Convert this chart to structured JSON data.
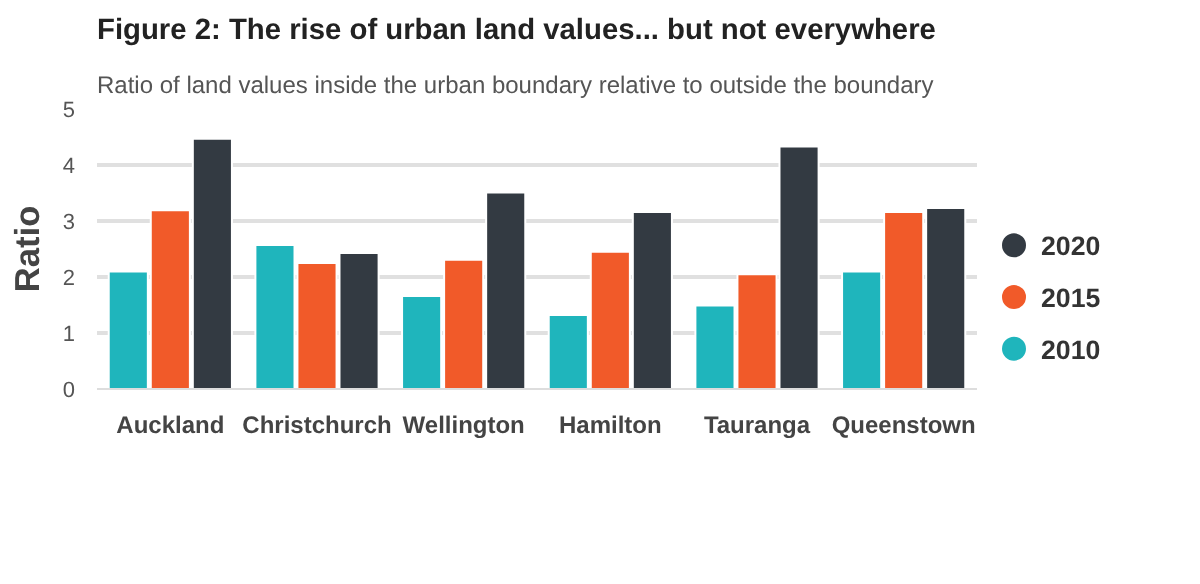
{
  "chart_data": {
    "type": "bar",
    "title": "Figure 2: The rise of urban land values... but not everywhere",
    "subtitle": "Ratio of land values inside the urban boundary relative to outside the boundary",
    "ylabel": "Ratio",
    "categories": [
      "Auckland",
      "Christchurch",
      "Wellington",
      "Hamilton",
      "Tauranga",
      "Queenstown"
    ],
    "series": [
      {
        "name": "2010",
        "color": "#1fb5bc",
        "values": [
          2.1,
          2.57,
          1.66,
          1.32,
          1.49,
          2.1
        ]
      },
      {
        "name": "2015",
        "color": "#f15a29",
        "values": [
          3.19,
          2.25,
          2.31,
          2.45,
          2.05,
          3.16
        ]
      },
      {
        "name": "2020",
        "color": "#333a42",
        "values": [
          4.47,
          2.43,
          3.51,
          3.16,
          4.33,
          3.23
        ]
      }
    ],
    "ylim": [
      0,
      5
    ],
    "yticks": [
      0,
      1,
      2,
      3,
      4,
      5
    ],
    "grid": "y",
    "legend": "right"
  }
}
